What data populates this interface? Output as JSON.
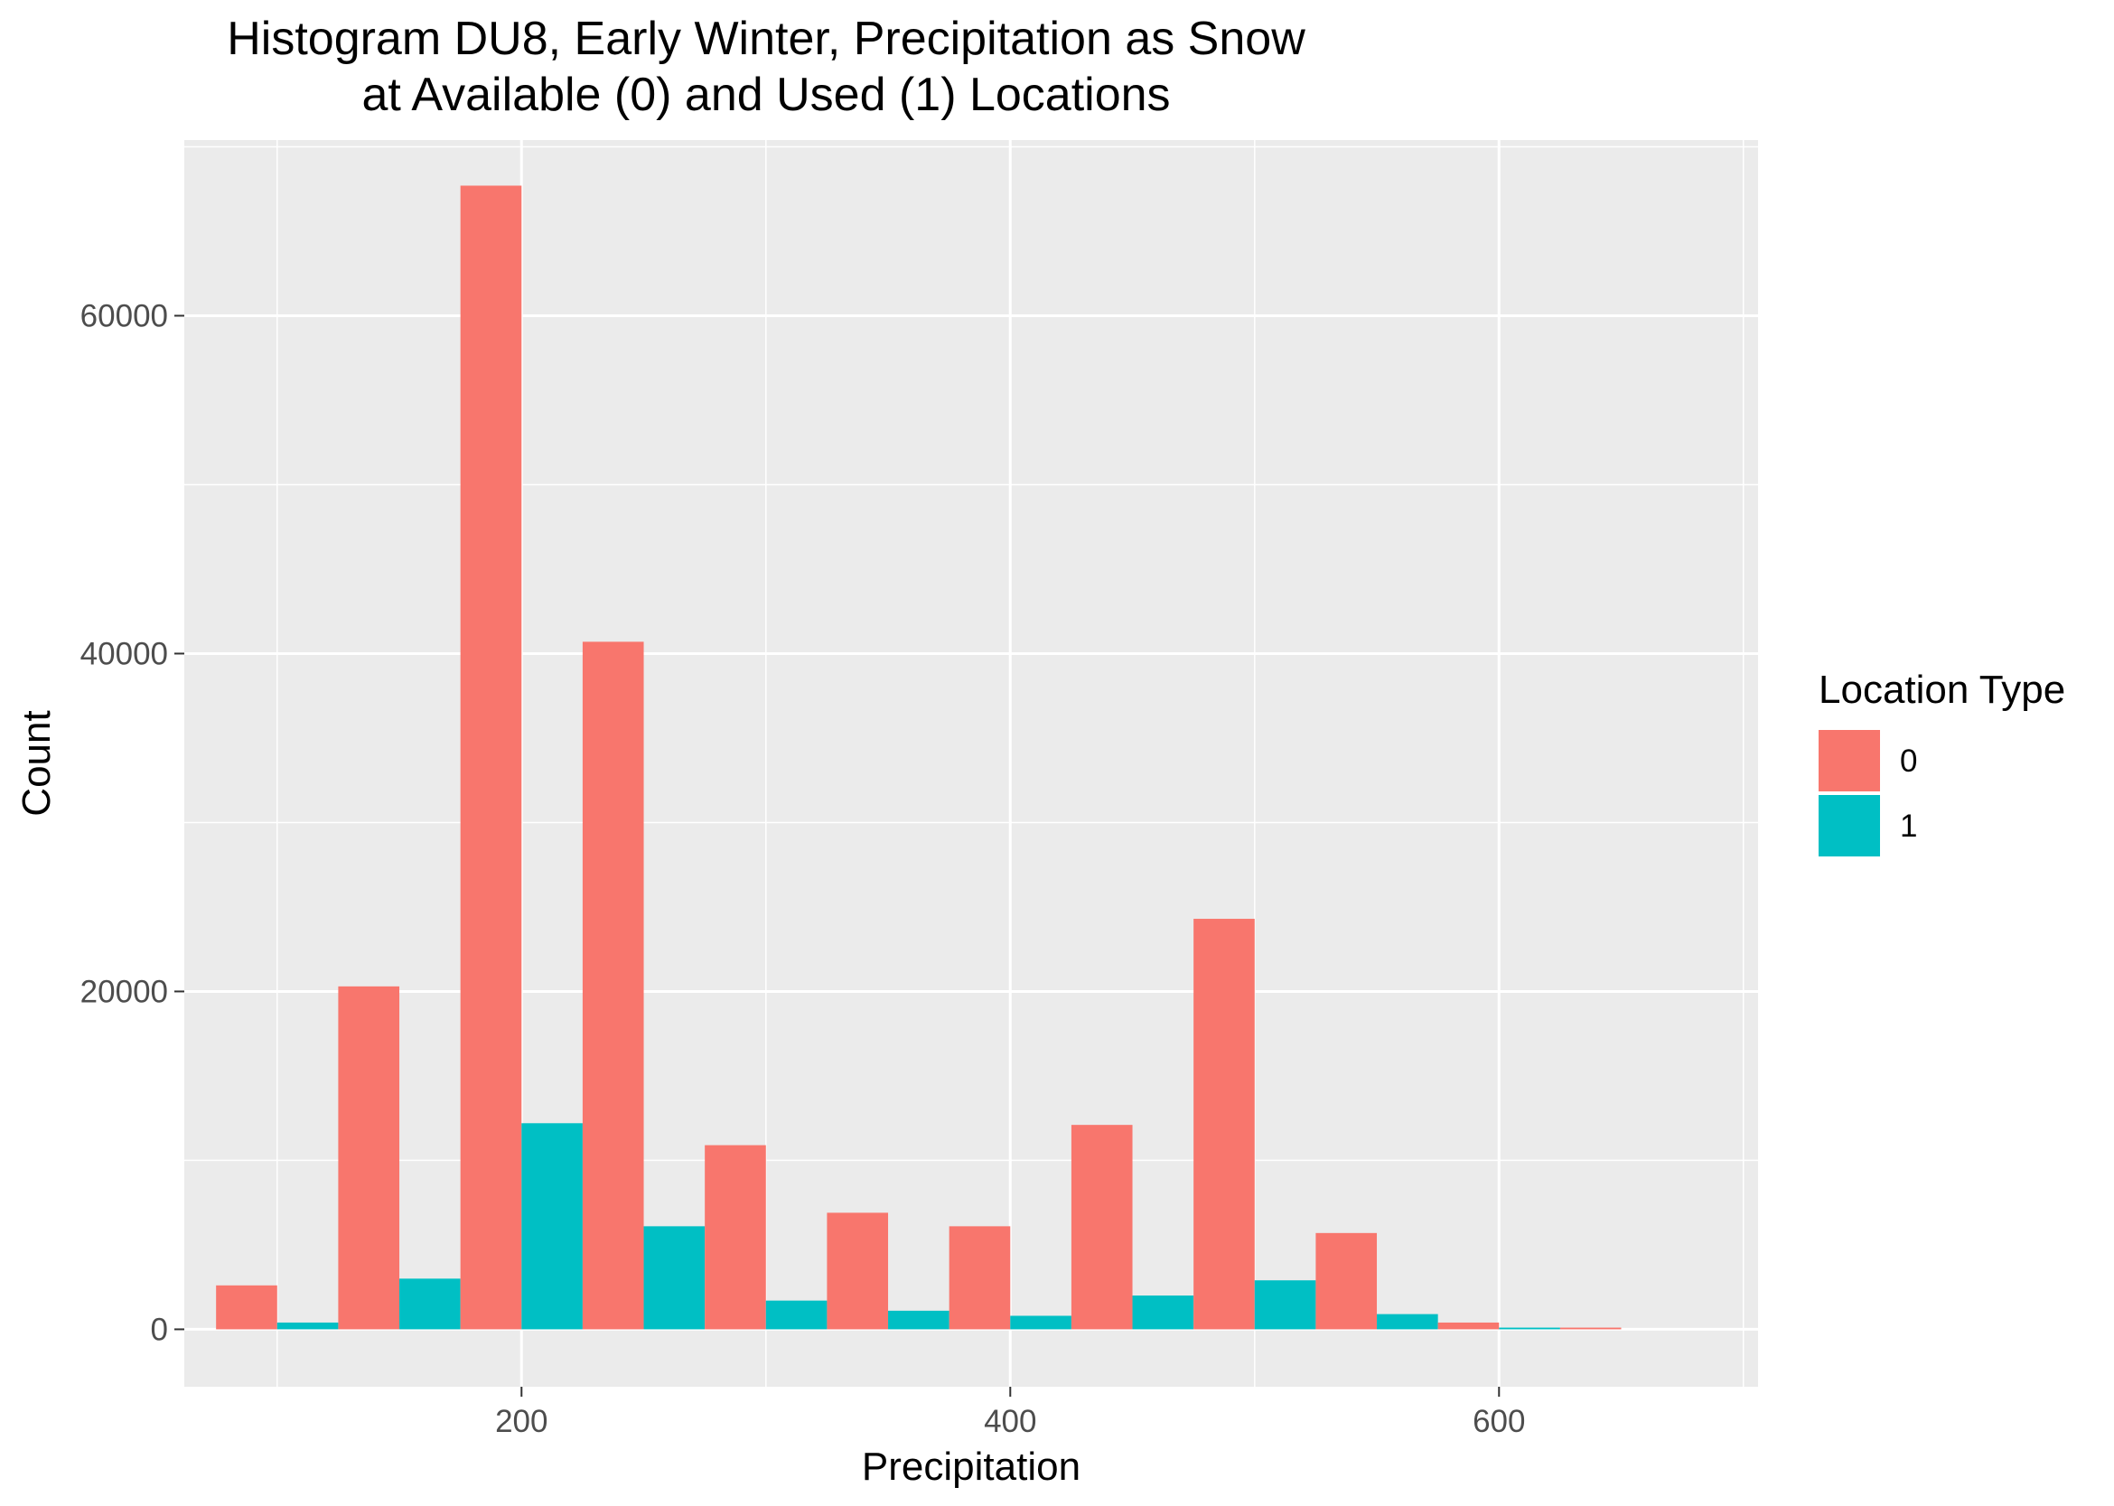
{
  "chart_data": {
    "type": "bar",
    "title_line1": "Histogram DU8, Early Winter, Precipitation as Snow",
    "title_line2": "at Available (0) and Used (1) Locations",
    "xlabel": "Precipitation",
    "ylabel": "Count",
    "xlim": [
      62,
      706
    ],
    "ylim": [
      -3400,
      70400
    ],
    "x_ticks": [
      200,
      400,
      600
    ],
    "x_tick_labels": [
      "200",
      "400",
      "600"
    ],
    "x_minor": [
      100,
      300,
      500,
      700
    ],
    "y_ticks": [
      0,
      20000,
      40000,
      60000
    ],
    "y_tick_labels": [
      "0",
      "20000",
      "40000",
      "60000"
    ],
    "y_minor": [
      10000,
      30000,
      50000,
      70000
    ],
    "grid": true,
    "legend": {
      "title": "Location Type",
      "position": "right"
    },
    "bin_width": 50,
    "x": [
      100,
      150,
      200,
      250,
      300,
      350,
      400,
      450,
      500,
      550,
      600,
      650,
      700
    ],
    "series": [
      {
        "name": "0",
        "color": "#F8766D",
        "values": [
          2600,
          20300,
          67700,
          40700,
          10900,
          6900,
          6100,
          12100,
          24300,
          5700,
          400,
          100,
          0
        ]
      },
      {
        "name": "1",
        "color": "#00BFC4",
        "values": [
          400,
          3000,
          12200,
          6100,
          1700,
          1100,
          800,
          2000,
          2900,
          900,
          100,
          0,
          0
        ]
      }
    ],
    "colors": {
      "panel": "#EBEBEB",
      "grid": "#FFFFFF",
      "text": "#000000",
      "tick_text": "#4D4D4D"
    }
  }
}
